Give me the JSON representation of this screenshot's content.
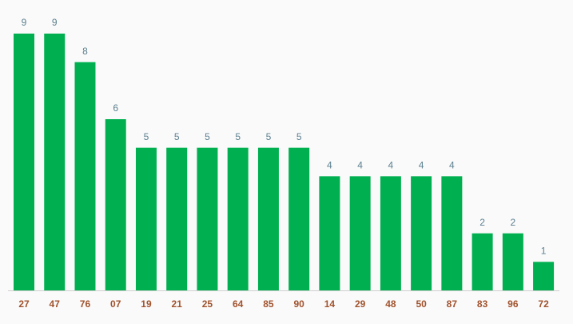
{
  "chart_data": {
    "type": "bar",
    "categories": [
      "27",
      "47",
      "76",
      "07",
      "19",
      "21",
      "25",
      "64",
      "85",
      "90",
      "14",
      "29",
      "48",
      "50",
      "87",
      "83",
      "96",
      "72"
    ],
    "values": [
      9,
      9,
      8,
      6,
      5,
      5,
      5,
      5,
      5,
      5,
      4,
      4,
      4,
      4,
      4,
      2,
      2,
      1
    ],
    "color": "#00b050"
  }
}
